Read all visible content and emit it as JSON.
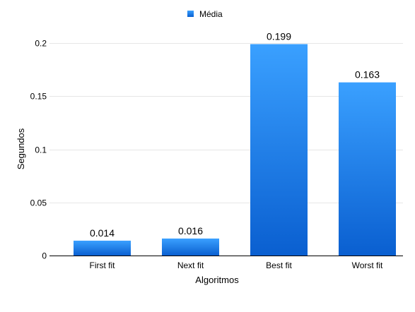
{
  "chart_data": {
    "type": "bar",
    "categories": [
      "First fit",
      "Next fit",
      "Best fit",
      "Worst fit"
    ],
    "series": [
      {
        "name": "Média",
        "values": [
          0.014,
          0.016,
          0.199,
          0.163
        ],
        "data_labels": [
          "0.014",
          "0.016",
          "0.199",
          "0.163"
        ],
        "color_top": "#3aa0ff",
        "color_bottom": "#0a5fd0"
      }
    ],
    "title": "",
    "xlabel": "Algoritmos",
    "ylabel": "Segundos",
    "ylim": [
      0,
      0.2
    ],
    "yticks": [
      0,
      0.05,
      0.1,
      0.15,
      0.2
    ],
    "ytick_labels": [
      "0",
      "0.05",
      "0.1",
      "0.15",
      "0.2"
    ],
    "grid": true,
    "legend_position": "top-center"
  }
}
